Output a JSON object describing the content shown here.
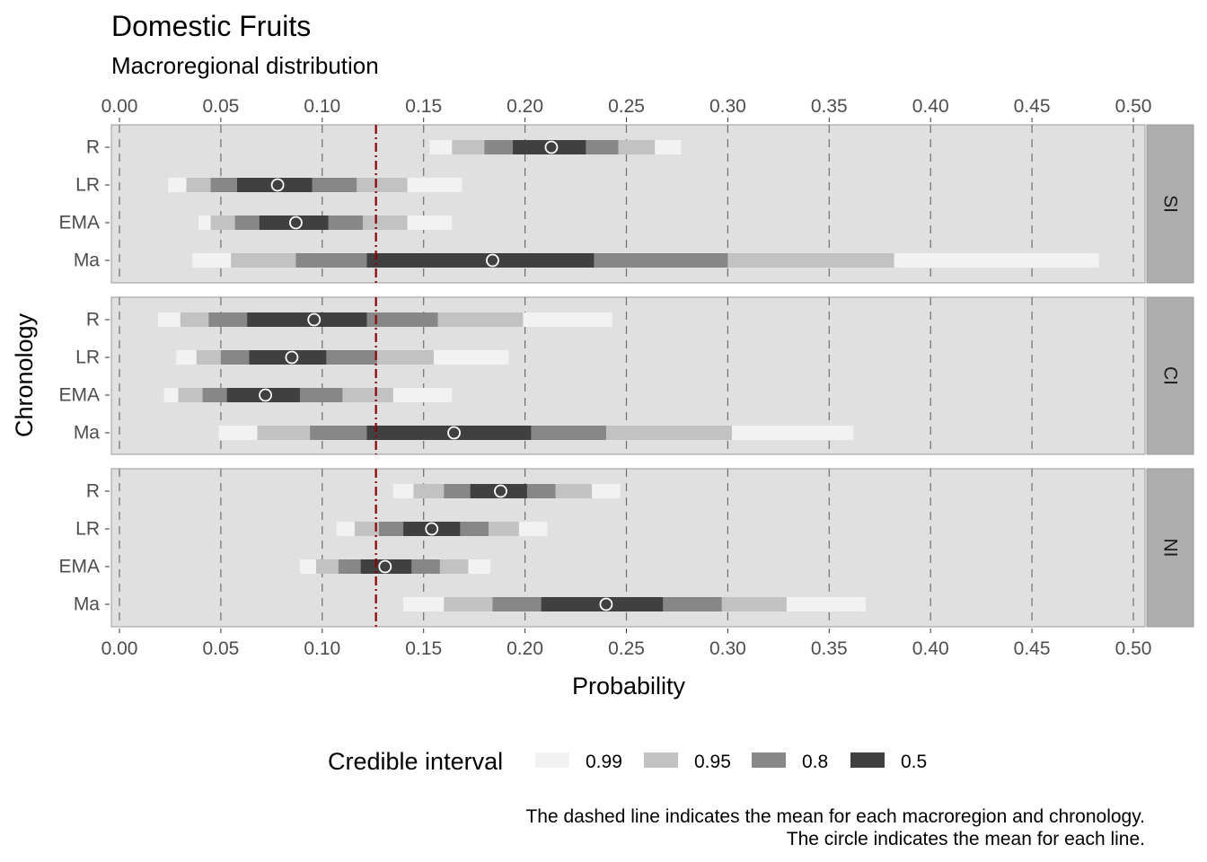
{
  "chart_data": {
    "type": "interval",
    "title": "Domestic Fruits",
    "subtitle": "Macroregional distribution",
    "xlabel": "Probability",
    "ylabel": "Chronology",
    "xlim": [
      -0.003,
      0.507
    ],
    "x_ticks": [
      "0.00",
      "0.05",
      "0.10",
      "0.15",
      "0.20",
      "0.25",
      "0.30",
      "0.35",
      "0.40",
      "0.45",
      "0.50"
    ],
    "x_tick_values": [
      0,
      0.05,
      0.1,
      0.15,
      0.2,
      0.25,
      0.3,
      0.35,
      0.4,
      0.45,
      0.5
    ],
    "y_categories": [
      "R",
      "LR",
      "EMA",
      "Ma"
    ],
    "overall_mean": 0.1265,
    "legend": {
      "title": "Credible interval",
      "levels": [
        "0.99",
        "0.95",
        "0.8",
        "0.5"
      ],
      "colors": [
        "#f2f2f2",
        "#c2c2c2",
        "#878787",
        "#404040"
      ]
    },
    "colors": {
      "panel_bg": "#e0e0e0",
      "strip_bg": "#adadad",
      "mean_line": "#8b0000",
      "grid": "#6e6e6e"
    },
    "panels": [
      {
        "strip": "SI",
        "rows": [
          {
            "label": "R",
            "mean": 0.213,
            "i99": [
              0.153,
              0.277
            ],
            "i95": [
              0.164,
              0.264
            ],
            "i80": [
              0.18,
              0.246
            ],
            "i50": [
              0.194,
              0.23
            ]
          },
          {
            "label": "LR",
            "mean": 0.078,
            "i99": [
              0.024,
              0.169
            ],
            "i95": [
              0.033,
              0.142
            ],
            "i80": [
              0.045,
              0.117
            ],
            "i50": [
              0.058,
              0.095
            ]
          },
          {
            "label": "EMA",
            "mean": 0.087,
            "i99": [
              0.039,
              0.164
            ],
            "i95": [
              0.045,
              0.142
            ],
            "i80": [
              0.057,
              0.12
            ],
            "i50": [
              0.069,
              0.103
            ]
          },
          {
            "label": "Ma",
            "mean": 0.184,
            "i99": [
              0.036,
              0.483
            ],
            "i95": [
              0.055,
              0.382
            ],
            "i80": [
              0.087,
              0.3
            ],
            "i50": [
              0.122,
              0.234
            ]
          }
        ]
      },
      {
        "strip": "CI",
        "rows": [
          {
            "label": "R",
            "mean": 0.096,
            "i99": [
              0.019,
              0.243
            ],
            "i95": [
              0.03,
              0.199
            ],
            "i80": [
              0.044,
              0.157
            ],
            "i50": [
              0.063,
              0.122
            ]
          },
          {
            "label": "LR",
            "mean": 0.085,
            "i99": [
              0.028,
              0.192
            ],
            "i95": [
              0.038,
              0.155
            ],
            "i80": [
              0.05,
              0.127
            ],
            "i50": [
              0.064,
              0.102
            ]
          },
          {
            "label": "EMA",
            "mean": 0.072,
            "i99": [
              0.022,
              0.164
            ],
            "i95": [
              0.029,
              0.135
            ],
            "i80": [
              0.041,
              0.11
            ],
            "i50": [
              0.053,
              0.089
            ]
          },
          {
            "label": "Ma",
            "mean": 0.165,
            "i99": [
              0.049,
              0.362
            ],
            "i95": [
              0.068,
              0.302
            ],
            "i80": [
              0.094,
              0.24
            ],
            "i50": [
              0.122,
              0.203
            ]
          }
        ]
      },
      {
        "strip": "NI",
        "rows": [
          {
            "label": "R",
            "mean": 0.188,
            "i99": [
              0.135,
              0.247
            ],
            "i95": [
              0.145,
              0.233
            ],
            "i80": [
              0.16,
              0.215
            ],
            "i50": [
              0.173,
              0.201
            ]
          },
          {
            "label": "LR",
            "mean": 0.154,
            "i99": [
              0.107,
              0.211
            ],
            "i95": [
              0.116,
              0.197
            ],
            "i80": [
              0.128,
              0.182
            ],
            "i50": [
              0.14,
              0.168
            ]
          },
          {
            "label": "EMA",
            "mean": 0.131,
            "i99": [
              0.089,
              0.183
            ],
            "i95": [
              0.097,
              0.172
            ],
            "i80": [
              0.108,
              0.158
            ],
            "i50": [
              0.119,
              0.144
            ]
          },
          {
            "label": "Ma",
            "mean": 0.24,
            "i99": [
              0.14,
              0.368
            ],
            "i95": [
              0.16,
              0.329
            ],
            "i80": [
              0.184,
              0.297
            ],
            "i50": [
              0.208,
              0.268
            ]
          }
        ]
      }
    ]
  },
  "caption": {
    "line1": "The dashed line indicates the mean for each macroregion and chronology.",
    "line2": "The circle indicates the mean for each line."
  }
}
